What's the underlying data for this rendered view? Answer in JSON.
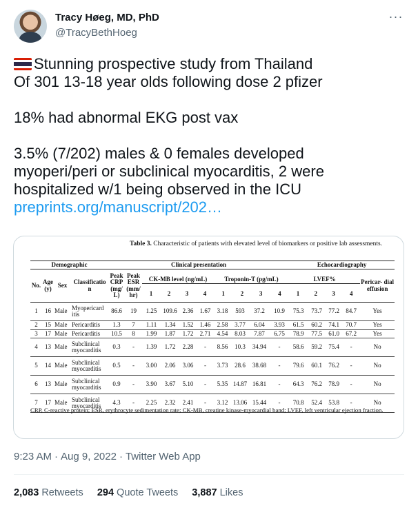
{
  "author": {
    "name": "Tracy Høeg, MD, PhD",
    "handle": "@TracyBethHoeg"
  },
  "more_icon": "more-horizontal-icon",
  "tweet": {
    "line1": "Stunning prospective study from Thailand",
    "line2": "Of 301 13-18 year olds following dose 2 pfizer",
    "line3": "18% had abnormal EKG post vax",
    "line4": "3.5% (7/202) males & 0 females developed",
    "line5": "myoperi/peri or subclinical myocarditis, 2 were",
    "line6": "hospitalized w/1 being observed in the ICU",
    "link": "preprints.org/manuscript/202…"
  },
  "figure": {
    "caption_bold": "Table 3.",
    "caption_rest": " Characteristic of patients with elevated level of biomarkers or positive lab assessments.",
    "groups": {
      "demographic": "Demographic",
      "clinical": "Clinical presentation",
      "echo": "Echocardiography",
      "ckmb": "CK-MB level (ng/mL)",
      "tropo": "Troponin-T (pg/mL)",
      "lvef": "LVEF%"
    },
    "headers": {
      "no": "No.",
      "age": "Age (y)",
      "sex": "Sex",
      "class": "Classificatio n",
      "crp": "Peak CRP (mg/ L)",
      "esr": "Peak ESR (mm/ hr)",
      "d1": "1",
      "d2": "2",
      "d3": "3",
      "d4": "4",
      "effusion": "Pericar- dial effusion"
    },
    "rows": [
      {
        "no": "1",
        "age": "16",
        "sex": "Male",
        "class": "Myopericard itis",
        "crp": "86.6",
        "esr": "19",
        "ck": [
          "1.25",
          "109.6",
          "2.36",
          "1.67"
        ],
        "tt": [
          "3.18",
          "593",
          "37.2",
          "10.9"
        ],
        "lv": [
          "75.3",
          "73.7",
          "77.2",
          "84.7"
        ],
        "eff": "Yes"
      },
      {
        "no": "2",
        "age": "15",
        "sex": "Male",
        "class": "Pericarditis",
        "crp": "1.3",
        "esr": "7",
        "ck": [
          "1.11",
          "1.34",
          "1.52",
          "1.46"
        ],
        "tt": [
          "2.58",
          "3.77",
          "6.04",
          "3.93"
        ],
        "lv": [
          "61.5",
          "60.2",
          "74.1",
          "70.7"
        ],
        "eff": "Yes"
      },
      {
        "no": "3",
        "age": "17",
        "sex": "Male",
        "class": "Pericarditis",
        "crp": "10.5",
        "esr": "8",
        "ck": [
          "1.99",
          "1.87",
          "1.72",
          "2.71"
        ],
        "tt": [
          "4.54",
          "8.03",
          "7.87",
          "6.75"
        ],
        "lv": [
          "78.9",
          "77.5",
          "61.0",
          "67.2"
        ],
        "eff": "Yes"
      },
      {
        "no": "4",
        "age": "13",
        "sex": "Male",
        "class": "Subclinical myocarditis",
        "crp": "0.3",
        "esr": "-",
        "ck": [
          "1.39",
          "1.72",
          "2.28",
          "-"
        ],
        "tt": [
          "8.56",
          "10.3",
          "34.94",
          "-"
        ],
        "lv": [
          "58.6",
          "59.2",
          "75.4",
          "-"
        ],
        "eff": "No"
      },
      {
        "no": "5",
        "age": "14",
        "sex": "Male",
        "class": "Subclinical myocarditis",
        "crp": "0.5",
        "esr": "-",
        "ck": [
          "3.00",
          "2.06",
          "3.06",
          "-"
        ],
        "tt": [
          "3.73",
          "28.6",
          "38.68",
          "-"
        ],
        "lv": [
          "79.6",
          "60.1",
          "76.2",
          "-"
        ],
        "eff": "No"
      },
      {
        "no": "6",
        "age": "13",
        "sex": "Male",
        "class": "Subclinical myocarditis",
        "crp": "0.9",
        "esr": "-",
        "ck": [
          "3.90",
          "3.67",
          "5.10",
          "-"
        ],
        "tt": [
          "5.35",
          "14.87",
          "16.81",
          "-"
        ],
        "lv": [
          "64.3",
          "76.2",
          "78.9",
          "-"
        ],
        "eff": "No"
      },
      {
        "no": "7",
        "age": "17",
        "sex": "Male",
        "class": "Subclinical myocarditis",
        "crp": "4.3",
        "esr": "-",
        "ck": [
          "2.25",
          "2.32",
          "2.41",
          "-"
        ],
        "tt": [
          "3.12",
          "13.06",
          "15.44",
          "-"
        ],
        "lv": [
          "70.8",
          "52.4",
          "53.8",
          "-"
        ],
        "eff": "No"
      }
    ],
    "footnote": "CRP, C-reactive protein; ESR, erythrocyte sedimentation rate; CK-MB, creatine kinase-myocardial band; LVEF, left ventricular ejection fraction."
  },
  "meta": {
    "time": "9:23 AM",
    "date": "Aug 9, 2022",
    "source": "Twitter Web App",
    "separator": "·"
  },
  "stats": {
    "retweets_count": "2,083",
    "retweets_label": "Retweets",
    "quotes_count": "294",
    "quotes_label": "Quote Tweets",
    "likes_count": "3,887",
    "likes_label": "Likes"
  }
}
